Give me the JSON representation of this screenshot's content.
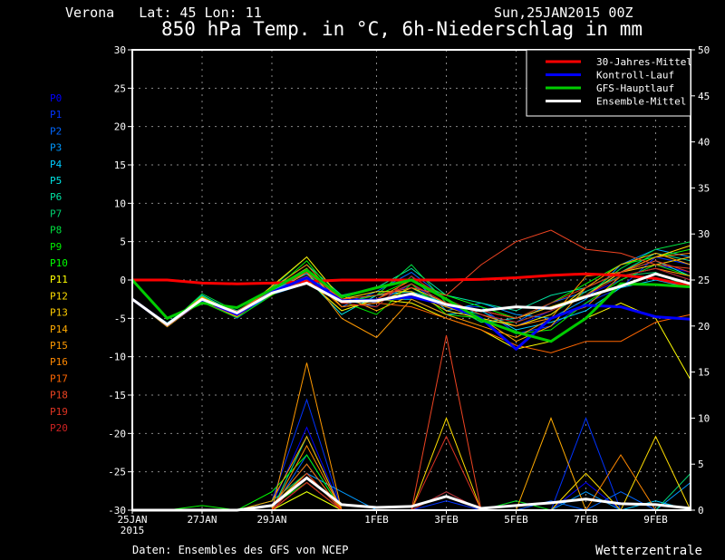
{
  "header": {
    "location": "Verona   Lat: 45 Lon: 11",
    "run": "Sun,25JAN2015 00Z",
    "title": "850 hPa Temp. in °C, 6h-Niederschlag in mm"
  },
  "footer": {
    "source": "Daten: Ensembles des GFS von NCEP",
    "brand": "Wetterzentrale"
  },
  "chart_data": {
    "type": "line",
    "title": "850 hPa Temp. in °C, 6h-Niederschlag in mm",
    "x": [
      "2015-01-25",
      "2015-01-26",
      "2015-01-27",
      "2015-01-28",
      "2015-01-29",
      "2015-01-30",
      "2015-01-31",
      "2015-02-01",
      "2015-02-02",
      "2015-02-03",
      "2015-02-04",
      "2015-02-05",
      "2015-02-06",
      "2015-02-07",
      "2015-02-08",
      "2015-02-09",
      "2015-02-10"
    ],
    "xlim": [
      "2015-01-25",
      "2015-02-10"
    ],
    "x_ticks": [
      {
        "date": "2015-01-25",
        "label": "25JAN",
        "sub": "2015"
      },
      {
        "date": "2015-01-27",
        "label": "27JAN"
      },
      {
        "date": "2015-01-29",
        "label": "29JAN"
      },
      {
        "date": "2015-02-01",
        "label": "1FEB"
      },
      {
        "date": "2015-02-03",
        "label": "3FEB"
      },
      {
        "date": "2015-02-05",
        "label": "5FEB"
      },
      {
        "date": "2015-02-07",
        "label": "7FEB"
      },
      {
        "date": "2015-02-09",
        "label": "9FEB"
      }
    ],
    "y_left": {
      "min": -30,
      "max": 30,
      "step": 5,
      "ticks": [
        "-30",
        "-25",
        "-20",
        "-15",
        "-10",
        "-5",
        "0",
        "5",
        "10",
        "15",
        "20",
        "25",
        "30"
      ]
    },
    "y_right": {
      "min": 0,
      "max": 50,
      "step": 5,
      "ticks": [
        "0",
        "5",
        "10",
        "15",
        "20",
        "25",
        "30",
        "35",
        "40",
        "45",
        "50"
      ]
    },
    "grid": true,
    "legend_position": "top-right",
    "legend": [
      {
        "name": "30-Jahres-Mittel",
        "color": "#ff0000"
      },
      {
        "name": "Kontroll-Lauf",
        "color": "#0000ff"
      },
      {
        "name": "GFS-Hauptlauf",
        "color": "#00cc00"
      },
      {
        "name": "Ensemble-Mittel",
        "color": "#ffffff"
      }
    ],
    "main_series": {
      "climate": [
        0,
        0,
        -0.4,
        -0.5,
        -0.4,
        -0.2,
        0,
        0,
        0,
        0,
        0.1,
        0.3,
        0.6,
        0.8,
        0.6,
        0.2,
        -0.8
      ],
      "control": [
        -2.5,
        -5.8,
        -2.6,
        -4.5,
        -1.6,
        0.3,
        -2.7,
        -2.6,
        -2.2,
        -3.2,
        -5.0,
        -9.0,
        -5.0,
        -3.3,
        -3.5,
        -4.8,
        -5.1
      ],
      "gfs": [
        0,
        -5.0,
        -3.0,
        -3.6,
        -1.2,
        1.3,
        -2.2,
        -1.0,
        0,
        -2.5,
        -5.2,
        -6.8,
        -8.0,
        -5.0,
        -0.5,
        -0.6,
        -0.9
      ],
      "mean": [
        -2.5,
        -5.8,
        -2.5,
        -4.3,
        -1.7,
        -0.4,
        -2.8,
        -2.7,
        -1.8,
        -3.2,
        -4.0,
        -3.5,
        -3.7,
        -2.2,
        -0.8,
        0.8,
        -0.5
      ],
      "mean_precip": [
        0,
        0,
        0,
        0,
        0.5,
        3.5,
        0.6,
        0.3,
        0.4,
        1.5,
        0.2,
        0.5,
        0.8,
        1.2,
        0.7,
        0.6,
        0.2
      ]
    },
    "series": [
      {
        "name": "P0",
        "color": "#0000ff",
        "temp": [
          -2.5,
          -6.0,
          -2.8,
          -4.8,
          -1.5,
          0.5,
          -3.0,
          -2.0,
          -1.0,
          -3.0,
          -5.0,
          -6.0,
          -4.0,
          -2.0,
          0.0,
          2.0,
          1.0
        ],
        "precip": [
          0,
          0,
          0,
          0,
          0.5,
          9,
          0,
          0,
          0,
          0,
          0,
          1,
          0,
          3,
          0,
          0,
          0
        ]
      },
      {
        "name": "P1",
        "color": "#0033ff",
        "temp": [
          -2.5,
          -5.9,
          -2.4,
          -5.0,
          -1.8,
          0.0,
          -2.0,
          -3.0,
          -0.5,
          -3.5,
          -3.5,
          -7.0,
          -6.0,
          -3.0,
          -1.0,
          3.0,
          2.0
        ],
        "precip": [
          0,
          0,
          0,
          0,
          1,
          12,
          0,
          0,
          0,
          1,
          0,
          0,
          0,
          10,
          0,
          0,
          0
        ]
      },
      {
        "name": "P2",
        "color": "#0066ff",
        "temp": [
          -2.5,
          -5.7,
          -2.6,
          -4.2,
          -1.2,
          1.5,
          -3.5,
          -1.5,
          1.0,
          -2.5,
          -4.5,
          -5.5,
          -3.0,
          -1.5,
          0.5,
          1.5,
          0.0
        ],
        "precip": [
          0,
          0,
          0,
          0,
          0,
          6,
          0,
          0,
          0,
          0,
          0,
          0,
          1,
          0,
          2,
          0,
          0
        ]
      },
      {
        "name": "P3",
        "color": "#0099ff",
        "temp": [
          -2.5,
          -6.0,
          -2.2,
          -4.6,
          -1.9,
          -0.5,
          -2.5,
          -3.5,
          0.5,
          -4.0,
          -3.0,
          -4.5,
          -5.0,
          -2.5,
          2.0,
          4.0,
          3.0
        ],
        "precip": [
          0,
          0,
          0,
          0,
          0.5,
          4,
          2,
          0,
          0,
          0,
          0,
          0,
          0,
          2,
          0,
          0,
          3
        ]
      },
      {
        "name": "P4",
        "color": "#00ccff",
        "temp": [
          -2.5,
          -5.8,
          -2.0,
          -4.4,
          -1.4,
          0.8,
          -3.0,
          -2.5,
          -2.5,
          -4.5,
          -4.0,
          -6.5,
          -5.5,
          -4.0,
          -1.0,
          0.0,
          -1.0
        ],
        "precip": [
          0,
          0,
          0,
          0,
          0,
          3,
          0,
          0,
          0,
          2,
          0,
          0,
          0,
          0,
          0,
          1,
          0
        ]
      },
      {
        "name": "P5",
        "color": "#00e5e5",
        "temp": [
          -2.5,
          -5.6,
          -2.3,
          -4.0,
          -1.6,
          0.2,
          -4.5,
          -2.0,
          -1.5,
          -3.0,
          -5.5,
          -5.0,
          -3.5,
          -2.0,
          1.0,
          2.5,
          0.5
        ],
        "precip": [
          0,
          0,
          0,
          0,
          0.5,
          5,
          0,
          0,
          0,
          0,
          0,
          0,
          0,
          0,
          0,
          0,
          0
        ]
      },
      {
        "name": "P6",
        "color": "#00e0a0",
        "temp": [
          -2.5,
          -6.1,
          -2.7,
          -4.3,
          -1.0,
          2.0,
          -2.0,
          -1.0,
          1.5,
          -2.0,
          -3.0,
          -4.0,
          -2.0,
          -1.0,
          1.0,
          3.5,
          2.5
        ],
        "precip": [
          0,
          0,
          0,
          0,
          0,
          8,
          0,
          0,
          0,
          0,
          0,
          0,
          0,
          0,
          0,
          0,
          0
        ]
      },
      {
        "name": "P7",
        "color": "#00d070",
        "temp": [
          -2.5,
          -5.9,
          -2.5,
          -4.7,
          -1.3,
          1.0,
          -3.5,
          -3.0,
          -1.0,
          -3.5,
          -4.5,
          -6.0,
          -4.5,
          -1.5,
          0.5,
          1.0,
          -1.0
        ],
        "precip": [
          0,
          0,
          0,
          0,
          1,
          4,
          0,
          0,
          0,
          0,
          0,
          0,
          0,
          0,
          0,
          0,
          4
        ]
      },
      {
        "name": "P8",
        "color": "#00e040",
        "temp": [
          -2.5,
          -6.0,
          -1.8,
          -4.1,
          -1.0,
          3.0,
          -2.5,
          -2.0,
          2.0,
          -3.0,
          -5.5,
          -5.5,
          -4.0,
          -2.0,
          1.5,
          4.0,
          5.0
        ],
        "precip": [
          0,
          0,
          0,
          0,
          0,
          2,
          0,
          0,
          0,
          0,
          0,
          0,
          0,
          0,
          0,
          0,
          0
        ]
      },
      {
        "name": "P9",
        "color": "#00ee00",
        "temp": [
          -2.5,
          -5.8,
          -2.9,
          -4.9,
          -2.0,
          0.5,
          -2.8,
          -4.5,
          -0.5,
          -4.5,
          -5.0,
          -7.0,
          -6.5,
          -3.0,
          0.0,
          2.0,
          0.5
        ],
        "precip": [
          0,
          0,
          0,
          0,
          0.5,
          3,
          0,
          0,
          0,
          0,
          0,
          1,
          0,
          0,
          0,
          0,
          0
        ]
      },
      {
        "name": "P10",
        "color": "#00ff00",
        "temp": [
          -2.5,
          -5.7,
          -2.1,
          -4.4,
          -1.5,
          2.5,
          -3.0,
          -2.0,
          0.0,
          -2.0,
          -3.5,
          -5.0,
          -3.0,
          -0.5,
          2.0,
          3.0,
          4.0
        ],
        "precip": [
          0,
          0,
          0.5,
          0,
          2,
          6,
          0,
          0,
          0,
          0,
          0,
          0,
          0,
          0,
          0,
          0,
          0
        ]
      },
      {
        "name": "P11",
        "color": "#ffff00",
        "temp": [
          -2.5,
          -5.9,
          -2.6,
          -4.6,
          -1.7,
          0.0,
          -4.0,
          -2.5,
          -3.0,
          -5.0,
          -6.5,
          -9.0,
          -8.0,
          -5.0,
          -3.0,
          -5.0,
          -13.0
        ],
        "precip": [
          0,
          0,
          0,
          0,
          0,
          2,
          0,
          0,
          0,
          0,
          0,
          0,
          0,
          0,
          0,
          0,
          0
        ]
      },
      {
        "name": "P12",
        "color": "#ffdd00",
        "temp": [
          -2.5,
          -6.0,
          -2.4,
          -4.5,
          -0.8,
          3.0,
          -2.5,
          -1.5,
          -1.5,
          -4.0,
          -5.0,
          -6.0,
          -4.5,
          -1.0,
          1.0,
          3.0,
          4.5
        ],
        "precip": [
          0,
          0,
          0,
          0,
          0,
          3,
          0,
          0,
          0,
          10,
          0,
          0,
          0,
          4,
          0,
          8,
          0
        ]
      },
      {
        "name": "P13",
        "color": "#ffcc00",
        "temp": [
          -2.5,
          -5.8,
          -2.3,
          -4.2,
          -1.2,
          1.5,
          -3.5,
          -3.0,
          -1.0,
          -3.0,
          -4.0,
          -5.0,
          -3.5,
          -2.0,
          1.0,
          2.0,
          3.0
        ],
        "precip": [
          0,
          0,
          0,
          0,
          0.5,
          4,
          0,
          0,
          0,
          0,
          0,
          0,
          0,
          0,
          0,
          0,
          0
        ]
      },
      {
        "name": "P14",
        "color": "#ffaa00",
        "temp": [
          -2.5,
          -6.1,
          -2.7,
          -4.8,
          -1.4,
          -0.5,
          -2.0,
          -4.0,
          -2.0,
          -3.5,
          -5.0,
          -8.0,
          -6.0,
          -1.0,
          2.0,
          3.5,
          2.0
        ],
        "precip": [
          0,
          0,
          0,
          0,
          1,
          8,
          0,
          0,
          0,
          0,
          0,
          0,
          10,
          0,
          0,
          0,
          0
        ]
      },
      {
        "name": "P15",
        "color": "#ff9900",
        "temp": [
          -2.5,
          -5.9,
          -2.5,
          -4.3,
          -1.9,
          1.0,
          -5.0,
          -7.5,
          -2.5,
          -4.5,
          -6.0,
          -7.5,
          -5.0,
          -3.5,
          0.5,
          1.5,
          0.5
        ],
        "precip": [
          0,
          0,
          0,
          0,
          0,
          16,
          0,
          0,
          0,
          0,
          0,
          0,
          0,
          0,
          0,
          0,
          0
        ]
      },
      {
        "name": "P16",
        "color": "#ff8800",
        "temp": [
          -2.5,
          -5.8,
          -2.2,
          -4.6,
          -1.1,
          2.0,
          -3.0,
          -2.5,
          0.0,
          -2.5,
          -4.5,
          -6.0,
          -5.0,
          0.5,
          1.0,
          3.0,
          3.5
        ],
        "precip": [
          0,
          0,
          0,
          0,
          0,
          7,
          0,
          0,
          0,
          0,
          0,
          0,
          0,
          0,
          6,
          0,
          0
        ]
      },
      {
        "name": "P17",
        "color": "#ff6600",
        "temp": [
          -2.5,
          -6.0,
          -2.8,
          -4.7,
          -1.6,
          0.5,
          -3.5,
          -3.0,
          -3.5,
          -5.0,
          -6.5,
          -8.5,
          -9.5,
          -8.0,
          -8.0,
          -5.5,
          -4.5
        ],
        "precip": [
          0,
          0,
          0,
          0,
          0.5,
          5,
          0,
          0,
          0,
          0,
          0,
          0,
          0,
          0,
          0,
          0,
          0
        ]
      },
      {
        "name": "P18",
        "color": "#ee4422",
        "temp": [
          -2.5,
          -5.7,
          -2.4,
          -4.1,
          -1.3,
          1.0,
          -2.5,
          -2.0,
          -1.0,
          -2.0,
          2.0,
          5.0,
          6.5,
          4.0,
          3.5,
          2.0,
          1.5
        ],
        "precip": [
          0,
          0,
          0,
          0,
          0,
          3,
          0,
          0,
          0,
          19,
          0,
          0,
          0,
          0,
          0,
          0,
          0
        ]
      },
      {
        "name": "P19",
        "color": "#dd3322",
        "temp": [
          -2.5,
          -5.9,
          -2.6,
          -4.4,
          -1.5,
          0.5,
          -3.0,
          -2.5,
          -0.5,
          -3.0,
          -4.0,
          -5.0,
          -3.0,
          -1.0,
          1.0,
          2.5,
          1.0
        ],
        "precip": [
          0,
          0,
          0,
          0,
          0,
          4,
          0,
          0,
          0,
          8,
          0,
          0,
          0,
          0,
          0,
          0,
          0
        ]
      },
      {
        "name": "P20",
        "color": "#cc2222",
        "temp": [
          -2.5,
          -6.0,
          -2.5,
          -4.5,
          -1.8,
          0.0,
          -3.0,
          -3.5,
          0.5,
          -2.5,
          -4.5,
          -5.5,
          -4.0,
          -2.0,
          0.5,
          1.5,
          0.0
        ],
        "precip": [
          0,
          0,
          0,
          0,
          0,
          3,
          0,
          0,
          0,
          2,
          0,
          0,
          0,
          0,
          0,
          0,
          0
        ]
      }
    ]
  }
}
